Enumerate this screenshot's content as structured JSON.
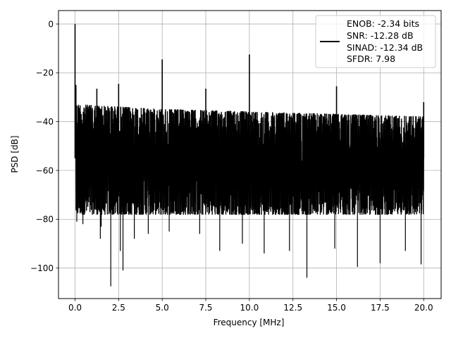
{
  "chart_data": {
    "type": "line",
    "xlabel": "Frequency [MHz]",
    "ylabel": "PSD [dB]",
    "xlim": [
      -0.95,
      21.0
    ],
    "ylim": [
      -112.5,
      5.5
    ],
    "x_ticks": [
      0.0,
      2.5,
      5.0,
      7.5,
      10.0,
      12.5,
      15.0,
      17.5,
      20.0
    ],
    "x_tick_labels": [
      "0.0",
      "2.5",
      "5.0",
      "7.5",
      "10.0",
      "12.5",
      "15.0",
      "17.5",
      "20.0"
    ],
    "y_ticks": [
      0,
      -20,
      -40,
      -60,
      -80,
      -100
    ],
    "y_tick_labels": [
      "0",
      "−20",
      "−40",
      "−60",
      "−80",
      "−100"
    ],
    "grid": true,
    "legend_position": "top-right",
    "line_color": "#000000",
    "noise_band": {
      "upper_envelope": [
        [
          0.05,
          -33
        ],
        [
          5,
          -35
        ],
        [
          10,
          -36
        ],
        [
          15,
          -37
        ],
        [
          20,
          -38
        ]
      ],
      "median_level": -55,
      "lower_envelope": [
        [
          0.05,
          -78
        ],
        [
          20,
          -78
        ]
      ]
    },
    "peaks": [
      {
        "x": 0.0,
        "y": 0.0
      },
      {
        "x": 0.05,
        "y": -25
      },
      {
        "x": 1.25,
        "y": -26.5
      },
      {
        "x": 2.5,
        "y": -24.5
      },
      {
        "x": 5.0,
        "y": -14.5
      },
      {
        "x": 7.5,
        "y": -26.5
      },
      {
        "x": 10.0,
        "y": -12.5
      },
      {
        "x": 15.0,
        "y": -25.5
      },
      {
        "x": 20.0,
        "y": -32
      }
    ],
    "dips": [
      {
        "x": 0.1,
        "y": -81
      },
      {
        "x": 0.45,
        "y": -82
      },
      {
        "x": 1.5,
        "y": -83
      },
      {
        "x": 1.45,
        "y": -88
      },
      {
        "x": 2.05,
        "y": -107.5
      },
      {
        "x": 2.6,
        "y": -93
      },
      {
        "x": 2.75,
        "y": -101
      },
      {
        "x": 3.4,
        "y": -88
      },
      {
        "x": 4.2,
        "y": -86
      },
      {
        "x": 5.4,
        "y": -85
      },
      {
        "x": 7.15,
        "y": -86
      },
      {
        "x": 8.3,
        "y": -93
      },
      {
        "x": 9.6,
        "y": -90
      },
      {
        "x": 10.85,
        "y": -94
      },
      {
        "x": 12.3,
        "y": -93
      },
      {
        "x": 13.3,
        "y": -104
      },
      {
        "x": 14.9,
        "y": -92
      },
      {
        "x": 16.2,
        "y": -99.5
      },
      {
        "x": 17.5,
        "y": -98
      },
      {
        "x": 18.95,
        "y": -93
      },
      {
        "x": 19.85,
        "y": -98.5
      }
    ],
    "legend": {
      "lines": [
        "ENOB: -2.34 bits",
        "SNR: -12.28 dB",
        "SINAD: -12.34 dB",
        "SFDR: 7.98"
      ]
    }
  }
}
